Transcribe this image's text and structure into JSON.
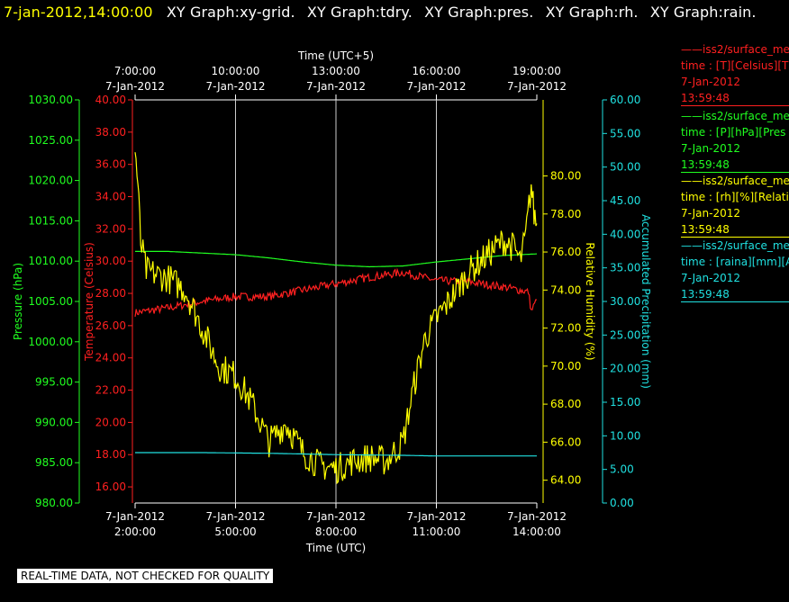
{
  "header": {
    "datetime": "7-jan-2012,14:00:00",
    "graphs": [
      "XY Graph:xy-grid.",
      "XY Graph:tdry.",
      "XY Graph:pres.",
      "XY Graph:rh.",
      "XY Graph:rain."
    ]
  },
  "legend": [
    {
      "name": "iss2/surface_me",
      "desc": "time : [T][Celsius][T",
      "date": "7-Jan-2012",
      "time": "13:59:48",
      "color": "#ff2020"
    },
    {
      "name": "iss2/surface_me",
      "desc": "time : [P][hPa][Pres",
      "date": "7-Jan-2012",
      "time": "13:59:48",
      "color": "#20ff20"
    },
    {
      "name": "iss2/surface_me",
      "desc": "time : [rh][%][Relati",
      "date": "7-Jan-2012",
      "time": "13:59:48",
      "color": "#ffff00"
    },
    {
      "name": "iss2/surface_me",
      "desc": "time : [raina][mm][A",
      "date": "7-Jan-2012",
      "time": "13:59:48",
      "color": "#20e0e0"
    }
  ],
  "footer": {
    "quality_note": "REAL-TIME DATA, NOT CHECKED FOR QUALITY"
  },
  "chart_data": {
    "type": "line",
    "x_bottom": {
      "label": "Time (UTC)",
      "range": [
        "2012-01-07 02:00",
        "2012-01-07 14:00"
      ],
      "ticks": [
        {
          "date": "7-Jan-2012",
          "time": "2:00:00"
        },
        {
          "date": "7-Jan-2012",
          "time": "5:00:00"
        },
        {
          "date": "7-Jan-2012",
          "time": "8:00:00"
        },
        {
          "date": "7-Jan-2012",
          "time": "11:00:00"
        },
        {
          "date": "7-Jan-2012",
          "time": "14:00:00"
        }
      ]
    },
    "x_top": {
      "label": "Time (UTC+5)",
      "ticks": [
        {
          "date": "7-Jan-2012",
          "time": "7:00:00"
        },
        {
          "date": "7-Jan-2012",
          "time": "10:00:00"
        },
        {
          "date": "7-Jan-2012",
          "time": "13:00:00"
        },
        {
          "date": "7-Jan-2012",
          "time": "16:00:00"
        },
        {
          "date": "7-Jan-2012",
          "time": "19:00:00"
        }
      ]
    },
    "grid": true,
    "axes": [
      {
        "id": "pressure",
        "label": "Pressure (hPa)",
        "color": "#20ff20",
        "range": [
          980,
          1030
        ],
        "ticks": [
          "980.00",
          "985.00",
          "990.00",
          "995.00",
          "1000.00",
          "1005.00",
          "1010.00",
          "1015.00",
          "1020.00",
          "1025.00",
          "1030.00"
        ]
      },
      {
        "id": "temperature",
        "label": "Temperature (Celsius)",
        "color": "#ff2020",
        "range": [
          15,
          40
        ],
        "ticks": [
          "16.00",
          "18.00",
          "20.00",
          "22.00",
          "24.00",
          "26.00",
          "28.00",
          "30.00",
          "32.00",
          "34.00",
          "36.00",
          "38.00",
          "40.00"
        ]
      },
      {
        "id": "rh",
        "label": "Relative Humidity (%)",
        "color": "#ffff00",
        "range": [
          62.8,
          84
        ],
        "ticks": [
          "64.00",
          "66.00",
          "68.00",
          "70.00",
          "72.00",
          "74.00",
          "76.00",
          "78.00",
          "80.00"
        ]
      },
      {
        "id": "rain",
        "label": "Accumulated Precipitation (mm)",
        "color": "#20e0e0",
        "range": [
          0,
          60
        ],
        "ticks": [
          "0.00",
          "5.00",
          "10.00",
          "15.00",
          "20.00",
          "25.00",
          "30.00",
          "35.00",
          "40.00",
          "45.00",
          "50.00",
          "55.00",
          "60.00"
        ]
      }
    ],
    "series": [
      {
        "axis": "temperature",
        "color": "#ff2020",
        "x": [
          "02:00",
          "03:00",
          "04:00",
          "05:00",
          "06:00",
          "07:00",
          "08:00",
          "09:00",
          "10:00",
          "11:00",
          "12:00",
          "13:00",
          "13:30",
          "13:45",
          "13:50",
          "14:00"
        ],
        "y": [
          26.8,
          27.1,
          27.5,
          27.8,
          27.8,
          28.2,
          28.6,
          29.0,
          29.3,
          28.8,
          28.7,
          28.4,
          28.2,
          28.1,
          26.9,
          27.6
        ]
      },
      {
        "axis": "pressure",
        "color": "#20ff20",
        "x": [
          "02:00",
          "03:00",
          "04:00",
          "05:00",
          "06:00",
          "07:00",
          "08:00",
          "09:00",
          "10:00",
          "11:00",
          "12:00",
          "13:00",
          "14:00"
        ],
        "y": [
          1011.2,
          1011.2,
          1011.0,
          1010.8,
          1010.4,
          1009.9,
          1009.5,
          1009.3,
          1009.4,
          1009.9,
          1010.3,
          1010.7,
          1010.9
        ]
      },
      {
        "axis": "rh",
        "color": "#ffff00",
        "x": [
          "02:00",
          "02:05",
          "02:10",
          "02:20",
          "02:40",
          "03:00",
          "03:30",
          "04:00",
          "04:30",
          "05:00",
          "05:30",
          "06:00",
          "06:30",
          "07:00",
          "07:30",
          "08:00",
          "08:30",
          "09:00",
          "09:30",
          "10:00",
          "10:20",
          "10:40",
          "11:00",
          "11:20",
          "11:40",
          "12:00",
          "12:30",
          "13:00",
          "13:20",
          "13:30",
          "13:40",
          "13:50",
          "13:55",
          "14:00"
        ],
        "y": [
          81.4,
          79.5,
          76.5,
          75.0,
          74.8,
          74.6,
          74.0,
          72.0,
          70.0,
          69.5,
          68.0,
          66.0,
          67.0,
          65.5,
          64.8,
          64.6,
          65.0,
          65.2,
          65.0,
          66.0,
          69.0,
          71.5,
          72.5,
          73.3,
          74.2,
          75.0,
          75.8,
          76.6,
          76.2,
          75.5,
          76.8,
          79.5,
          78.0,
          77.5
        ]
      },
      {
        "axis": "rain",
        "color": "#20e0e0",
        "x": [
          "02:00",
          "04:00",
          "06:00",
          "08:00",
          "10:00",
          "11:00",
          "12:00",
          "14:00"
        ],
        "y": [
          7.5,
          7.5,
          7.4,
          7.2,
          7.1,
          7.0,
          7.0,
          7.0
        ]
      }
    ]
  }
}
